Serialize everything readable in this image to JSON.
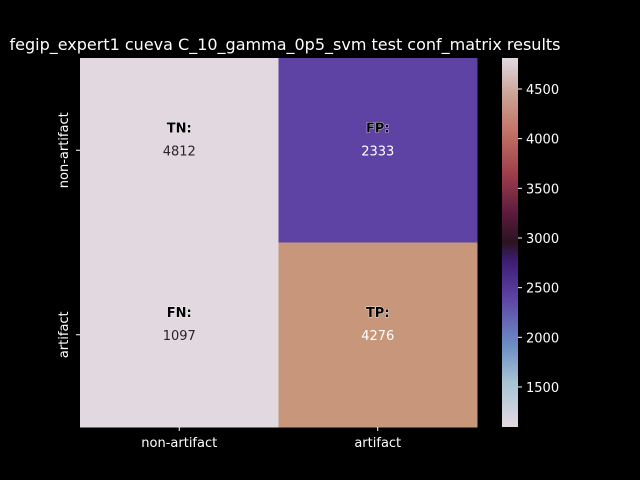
{
  "chart_data": {
    "type": "heatmap",
    "title": "fegip_expert1 cueva C_10_gamma_0p5_svm test conf_matrix results",
    "x_categories": [
      "non-artifact",
      "artifact"
    ],
    "y_categories": [
      "non-artifact",
      "artifact"
    ],
    "cells": [
      [
        {
          "tag": "TN:",
          "value": 4812,
          "color": "#e2d8e0",
          "text_color": "#262626"
        },
        {
          "tag": "FP:",
          "value": 2333,
          "color": "#5e43a5",
          "text_color": "#ffffff"
        }
      ],
      [
        {
          "tag": "FN:",
          "value": 1097,
          "color": "#e2d8e0",
          "text_color": "#262626"
        },
        {
          "tag": "TP:",
          "value": 4276,
          "color": "#c8977b",
          "text_color": "#ffffff"
        }
      ]
    ],
    "colorbar": {
      "range": [
        1097,
        4812
      ],
      "ticks": [
        "1500",
        "2000",
        "2500",
        "3000",
        "3500",
        "4000",
        "4500"
      ],
      "tick_values": [
        1500,
        2000,
        2500,
        3000,
        3500,
        4000,
        4500
      ],
      "colormap": "twilight",
      "stops": [
        {
          "v": 0.0,
          "c": "#e2d9e2"
        },
        {
          "v": 0.12,
          "c": "#a9c3d4"
        },
        {
          "v": 0.22,
          "c": "#6c8ec5"
        },
        {
          "v": 0.35,
          "c": "#5e43a5"
        },
        {
          "v": 0.45,
          "c": "#3c1d74"
        },
        {
          "v": 0.5,
          "c": "#2b1320"
        },
        {
          "v": 0.58,
          "c": "#5b1b3e"
        },
        {
          "v": 0.68,
          "c": "#9c3b4b"
        },
        {
          "v": 0.8,
          "c": "#c27366"
        },
        {
          "v": 0.9,
          "c": "#cba394"
        },
        {
          "v": 1.0,
          "c": "#e2d9e2"
        }
      ]
    }
  }
}
